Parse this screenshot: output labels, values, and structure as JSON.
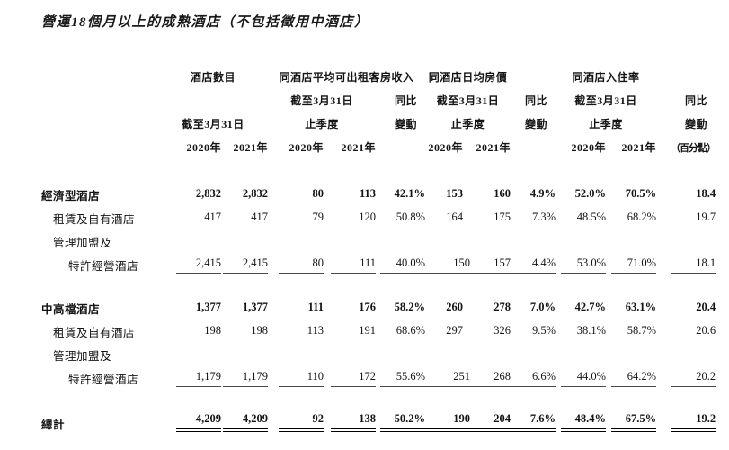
{
  "title": "營運18個月以上的成熟酒店（不包括徵用中酒店）",
  "header": {
    "groups": {
      "hotel_count": "酒店數目",
      "revpar": "同酒店平均可出租客房收入",
      "adr": "同酒店日均房價",
      "occupancy": "同酒店入住率"
    },
    "as_of": "截至3月31日",
    "quarter_ended": "止季度",
    "yoy_line1": "同比",
    "yoy_line2": "變動",
    "year_2020": "2020年",
    "year_2021": "2021年",
    "ppt_note": "（百分點）"
  },
  "rows": [
    {
      "label": "經濟型酒店",
      "indent": 0,
      "bold": true,
      "underline": "none",
      "values": [
        "2,832",
        "2,832",
        "80",
        "113",
        "42.1%",
        "153",
        "160",
        "4.9%",
        "52.0%",
        "70.5%",
        "18.4"
      ]
    },
    {
      "label": "租賃及自有酒店",
      "indent": 1,
      "bold": false,
      "underline": "none",
      "values": [
        "417",
        "417",
        "79",
        "120",
        "50.8%",
        "164",
        "175",
        "7.3%",
        "48.5%",
        "68.2%",
        "19.7"
      ]
    },
    {
      "label": "管理加盟及",
      "indent": 1,
      "bold": false,
      "underline": "none",
      "values": [
        "",
        "",
        "",
        "",
        "",
        "",
        "",
        "",
        "",
        "",
        ""
      ]
    },
    {
      "label": "特許經營酒店",
      "indent": 2,
      "bold": false,
      "underline": "single",
      "values": [
        "2,415",
        "2,415",
        "80",
        "111",
        "40.0%",
        "150",
        "157",
        "4.4%",
        "53.0%",
        "71.0%",
        "18.1"
      ]
    },
    {
      "spacer": true
    },
    {
      "label": "中高檔酒店",
      "indent": 0,
      "bold": true,
      "underline": "none",
      "values": [
        "1,377",
        "1,377",
        "111",
        "176",
        "58.2%",
        "260",
        "278",
        "7.0%",
        "42.7%",
        "63.1%",
        "20.4"
      ]
    },
    {
      "label": "租賃及自有酒店",
      "indent": 1,
      "bold": false,
      "underline": "none",
      "values": [
        "198",
        "198",
        "113",
        "191",
        "68.6%",
        "297",
        "326",
        "9.5%",
        "38.1%",
        "58.7%",
        "20.6"
      ]
    },
    {
      "label": "管理加盟及",
      "indent": 1,
      "bold": false,
      "underline": "none",
      "values": [
        "",
        "",
        "",
        "",
        "",
        "",
        "",
        "",
        "",
        "",
        ""
      ]
    },
    {
      "label": "特許經營酒店",
      "indent": 2,
      "bold": false,
      "underline": "single",
      "values": [
        "1,179",
        "1,179",
        "110",
        "172",
        "55.6%",
        "251",
        "268",
        "6.6%",
        "44.0%",
        "64.2%",
        "20.2"
      ]
    },
    {
      "spacer": true,
      "wide": true
    },
    {
      "label": "總計",
      "indent": 0,
      "bold": true,
      "underline": "double",
      "values": [
        "4,209",
        "4,209",
        "92",
        "138",
        "50.2%",
        "190",
        "204",
        "7.6%",
        "48.4%",
        "67.5%",
        "19.2"
      ]
    }
  ]
}
